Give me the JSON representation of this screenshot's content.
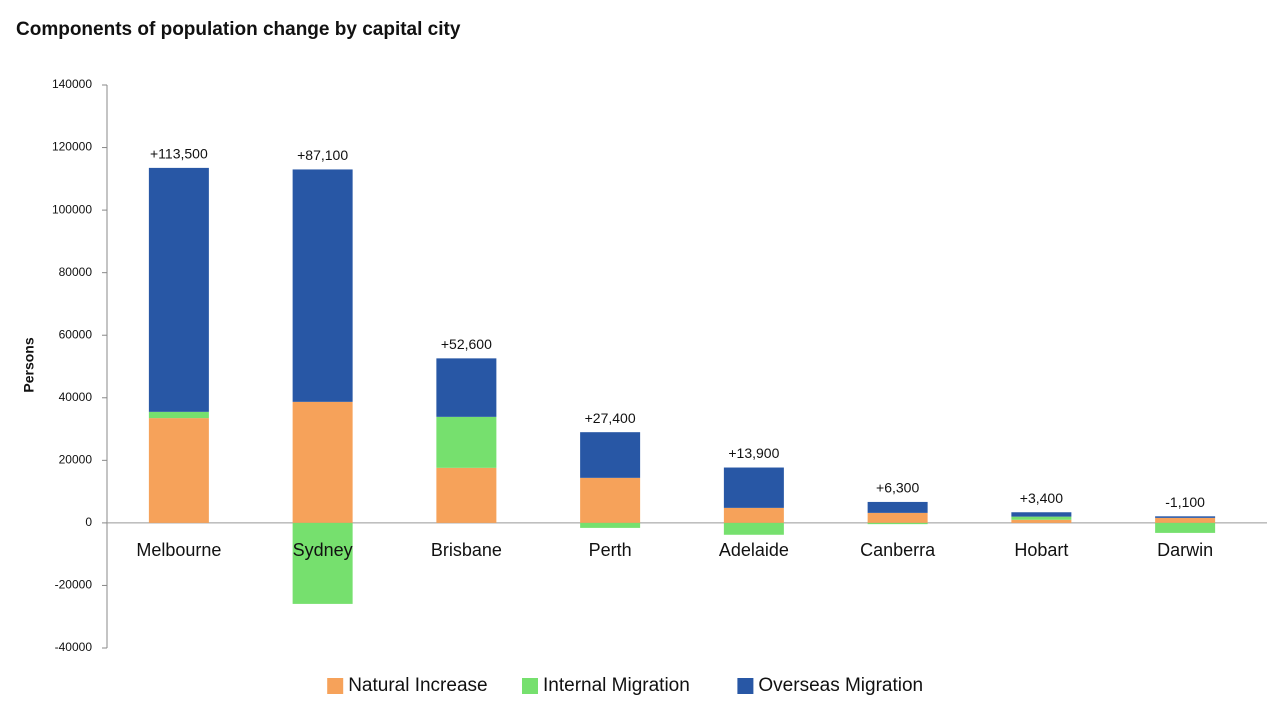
{
  "chart_data": {
    "type": "stacked_bar",
    "title": "Components of population change by capital city",
    "y_label": "Persons",
    "categories": [
      "Melbourne",
      "Sydney",
      "Brisbane",
      "Perth",
      "Adelaide",
      "Canberra",
      "Hobart",
      "Darwin"
    ],
    "series": [
      {
        "name": "Natural Increase",
        "color": "#f6a25a",
        "values": [
          33500,
          38700,
          17600,
          14400,
          4800,
          3200,
          1000,
          1600
        ]
      },
      {
        "name": "Internal Migration",
        "color": "#76e06e",
        "values": [
          2000,
          -25900,
          16300,
          -1600,
          -3800,
          -400,
          1000,
          -3200
        ]
      },
      {
        "name": "Overseas Migration",
        "color": "#2857a5",
        "values": [
          78000,
          74300,
          18700,
          14600,
          12900,
          3500,
          1400,
          500
        ]
      }
    ],
    "totals": [
      113500,
      87100,
      52600,
      27400,
      13900,
      6300,
      3400,
      -1100
    ],
    "total_labels": [
      "+113,500",
      "+87,100",
      "+52,600",
      "+27,400",
      "+13,900",
      "+6,300",
      "+3,400",
      "-1,100"
    ],
    "ylim": [
      -40000,
      140000
    ],
    "yticks": [
      -40000,
      -20000,
      0,
      20000,
      40000,
      60000,
      80000,
      100000,
      120000,
      140000
    ],
    "legend": "bottom"
  }
}
